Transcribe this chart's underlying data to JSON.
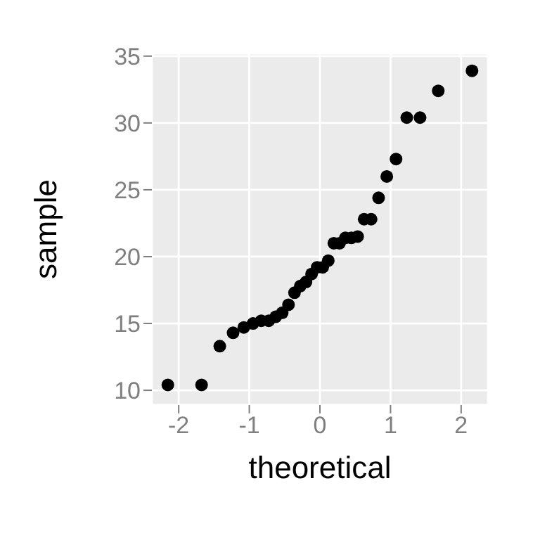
{
  "chart_data": {
    "type": "scatter",
    "xlabel": "theoretical",
    "ylabel": "sample",
    "x": [
      -2.154,
      -1.676,
      -1.418,
      -1.23,
      -1.078,
      -0.947,
      -0.831,
      -0.725,
      -0.626,
      -0.534,
      -0.445,
      -0.36,
      -0.278,
      -0.197,
      -0.118,
      -0.039,
      0.039,
      0.118,
      0.197,
      0.278,
      0.36,
      0.445,
      0.534,
      0.626,
      0.725,
      0.831,
      0.947,
      1.078,
      1.23,
      1.418,
      1.676,
      2.154
    ],
    "series": [
      {
        "color": "#000000",
        "values": [
          10.4,
          10.4,
          13.3,
          14.3,
          14.7,
          15.0,
          15.2,
          15.2,
          15.5,
          15.8,
          16.4,
          17.3,
          17.8,
          18.1,
          18.7,
          19.2,
          19.2,
          19.7,
          21.0,
          21.0,
          21.4,
          21.4,
          21.5,
          22.8,
          22.8,
          24.4,
          26.0,
          27.3,
          30.4,
          30.4,
          32.4,
          33.9
        ]
      }
    ],
    "xlim": [
      -2.38,
      2.38
    ],
    "ylim": [
      8.9,
      35.2
    ],
    "xticks": [
      -2,
      -1,
      0,
      1,
      2
    ],
    "yticks": [
      10,
      15,
      20,
      25,
      30,
      35
    ],
    "grid": true,
    "marker": "circle",
    "legend": false
  }
}
